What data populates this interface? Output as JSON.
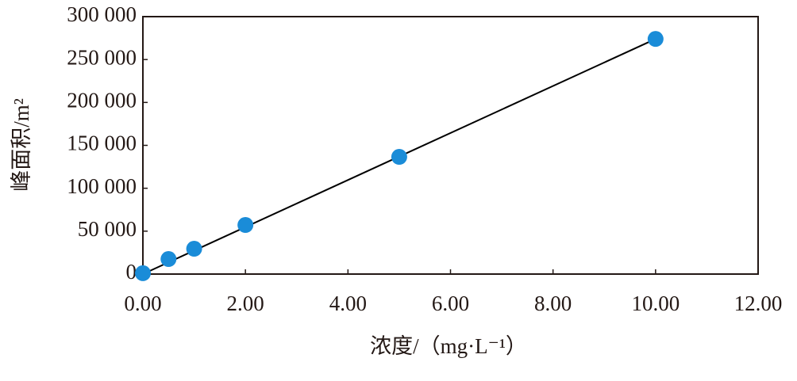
{
  "chart_data": {
    "type": "scatter",
    "x_label": "浓度/（mg·L⁻¹）",
    "y_label": "峰面积/m²",
    "x": [
      0,
      0.5,
      1.0,
      2.0,
      5.0,
      10.0
    ],
    "series": [
      {
        "color": "#1a8cd8",
        "values": [
          1000,
          17500,
          29500,
          57200,
          136600,
          274000
        ],
        "style": "marker"
      },
      {
        "color": "#000000",
        "x": [
          0,
          10.0
        ],
        "values": [
          0,
          274000
        ],
        "style": "line"
      }
    ],
    "xlim": [
      0,
      12
    ],
    "ylim": [
      0,
      300000
    ],
    "xticks": [
      {
        "value": 0,
        "label": "0.00"
      },
      {
        "value": 2,
        "label": "2.00"
      },
      {
        "value": 4,
        "label": "4.00"
      },
      {
        "value": 6,
        "label": "6.00"
      },
      {
        "value": 8,
        "label": "8.00"
      },
      {
        "value": 10,
        "label": "10.00"
      },
      {
        "value": 12,
        "label": "12.00"
      }
    ],
    "yticks": [
      0,
      {
        "value": 50000,
        "label": "50 000"
      },
      {
        "value": 100000,
        "label": "100 000"
      },
      {
        "value": 150000,
        "label": "150 000"
      },
      {
        "value": 200000,
        "label": "200 000"
      },
      {
        "value": 250000,
        "label": "250 000"
      },
      {
        "value": 300000,
        "label": "300 000"
      }
    ],
    "grid": false
  }
}
